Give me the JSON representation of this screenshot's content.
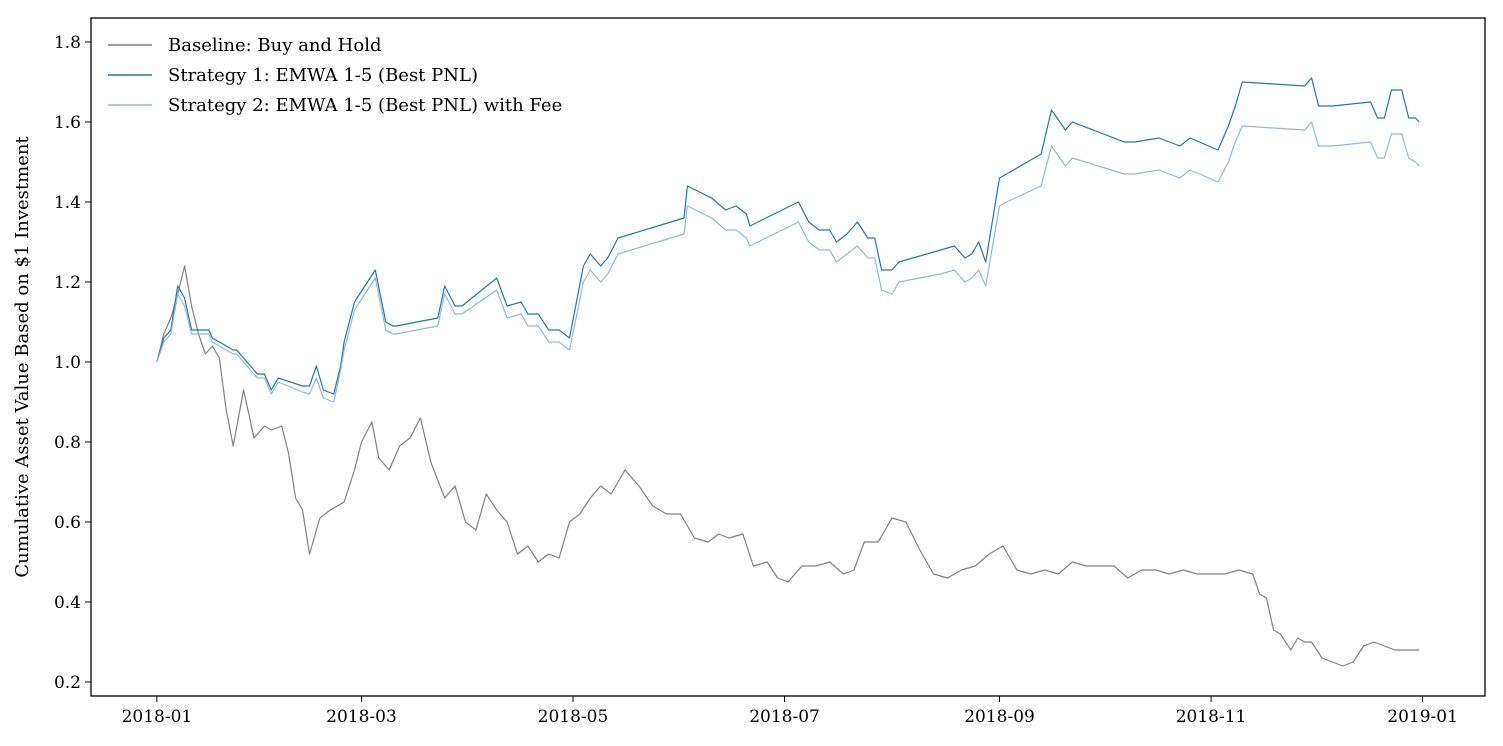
{
  "chart_data": {
    "type": "line",
    "title": "",
    "xlabel": "",
    "ylabel": "Cumulative Asset Value Based on $1 Investment",
    "xlim": [
      "2017-12-13",
      "2019-01-19"
    ],
    "ylim": [
      0.165,
      1.86
    ],
    "x_ticks": [
      "2018-01",
      "2018-03",
      "2018-05",
      "2018-07",
      "2018-09",
      "2018-11",
      "2019-01"
    ],
    "y_ticks": [
      0.2,
      0.4,
      0.6,
      0.8,
      1.0,
      1.2,
      1.4,
      1.6,
      1.8
    ],
    "y_tick_labels": [
      "0.2",
      "0.4",
      "0.6",
      "0.8",
      "1.0",
      "1.2",
      "1.4",
      "1.6",
      "1.8"
    ],
    "grid": false,
    "legend_position": "top-left",
    "series": [
      {
        "name": "Baseline: Buy and Hold",
        "color": "#808080",
        "x": [
          "2018-01-01",
          "2018-01-03",
          "2018-01-05",
          "2018-01-07",
          "2018-01-09",
          "2018-01-11",
          "2018-01-13",
          "2018-01-15",
          "2018-01-17",
          "2018-01-19",
          "2018-01-21",
          "2018-01-23",
          "2018-01-26",
          "2018-01-29",
          "2018-02-01",
          "2018-02-03",
          "2018-02-06",
          "2018-02-08",
          "2018-02-10",
          "2018-02-12",
          "2018-02-14",
          "2018-02-17",
          "2018-02-20",
          "2018-02-24",
          "2018-02-27",
          "2018-03-01",
          "2018-03-04",
          "2018-03-06",
          "2018-03-09",
          "2018-03-12",
          "2018-03-15",
          "2018-03-18",
          "2018-03-21",
          "2018-03-25",
          "2018-03-28",
          "2018-03-31",
          "2018-04-03",
          "2018-04-06",
          "2018-04-09",
          "2018-04-12",
          "2018-04-15",
          "2018-04-18",
          "2018-04-21",
          "2018-04-24",
          "2018-04-27",
          "2018-04-30",
          "2018-05-03",
          "2018-05-06",
          "2018-05-09",
          "2018-05-12",
          "2018-05-16",
          "2018-05-20",
          "2018-05-24",
          "2018-05-28",
          "2018-06-01",
          "2018-06-05",
          "2018-06-09",
          "2018-06-12",
          "2018-06-15",
          "2018-06-19",
          "2018-06-22",
          "2018-06-26",
          "2018-06-29",
          "2018-07-02",
          "2018-07-06",
          "2018-07-10",
          "2018-07-14",
          "2018-07-18",
          "2018-07-21",
          "2018-07-24",
          "2018-07-28",
          "2018-08-01",
          "2018-08-05",
          "2018-08-09",
          "2018-08-13",
          "2018-08-17",
          "2018-08-21",
          "2018-08-25",
          "2018-08-29",
          "2018-09-02",
          "2018-09-06",
          "2018-09-10",
          "2018-09-14",
          "2018-09-18",
          "2018-09-22",
          "2018-09-26",
          "2018-09-30",
          "2018-10-04",
          "2018-10-08",
          "2018-10-12",
          "2018-10-16",
          "2018-10-20",
          "2018-10-24",
          "2018-10-28",
          "2018-11-01",
          "2018-11-05",
          "2018-11-09",
          "2018-11-13",
          "2018-11-15",
          "2018-11-17",
          "2018-11-19",
          "2018-11-21",
          "2018-11-24",
          "2018-11-26",
          "2018-11-28",
          "2018-11-30",
          "2018-12-03",
          "2018-12-06",
          "2018-12-09",
          "2018-12-12",
          "2018-12-15",
          "2018-12-18",
          "2018-12-21",
          "2018-12-24",
          "2018-12-27",
          "2018-12-31"
        ],
        "values": [
          1.0,
          1.07,
          1.11,
          1.17,
          1.24,
          1.14,
          1.07,
          1.02,
          1.04,
          1.01,
          0.88,
          0.79,
          0.93,
          0.81,
          0.84,
          0.83,
          0.84,
          0.77,
          0.66,
          0.63,
          0.52,
          0.61,
          0.63,
          0.65,
          0.73,
          0.8,
          0.85,
          0.76,
          0.73,
          0.79,
          0.81,
          0.86,
          0.75,
          0.66,
          0.69,
          0.6,
          0.58,
          0.67,
          0.63,
          0.6,
          0.52,
          0.54,
          0.5,
          0.52,
          0.51,
          0.6,
          0.62,
          0.66,
          0.69,
          0.67,
          0.73,
          0.69,
          0.64,
          0.62,
          0.62,
          0.56,
          0.55,
          0.57,
          0.56,
          0.57,
          0.49,
          0.5,
          0.46,
          0.45,
          0.49,
          0.49,
          0.5,
          0.47,
          0.48,
          0.55,
          0.55,
          0.61,
          0.6,
          0.53,
          0.47,
          0.46,
          0.48,
          0.49,
          0.52,
          0.54,
          0.48,
          0.47,
          0.48,
          0.47,
          0.5,
          0.49,
          0.49,
          0.49,
          0.46,
          0.48,
          0.48,
          0.47,
          0.48,
          0.47,
          0.47,
          0.47,
          0.48,
          0.47,
          0.42,
          0.41,
          0.33,
          0.32,
          0.28,
          0.31,
          0.3,
          0.3,
          0.26,
          0.25,
          0.24,
          0.25,
          0.29,
          0.3,
          0.29,
          0.28,
          0.28,
          0.28
        ]
      },
      {
        "name": "Strategy 1: EMWA 1-5 (Best PNL)",
        "color": "#1f77b4",
        "x": [
          "2018-01-01",
          "2018-01-03",
          "2018-01-05",
          "2018-01-07",
          "2018-01-09",
          "2018-01-11",
          "2018-01-16",
          "2018-01-17",
          "2018-01-23",
          "2018-01-24",
          "2018-01-30",
          "2018-02-01",
          "2018-02-03",
          "2018-02-05",
          "2018-02-12",
          "2018-02-14",
          "2018-02-16",
          "2018-02-18",
          "2018-02-21",
          "2018-02-23",
          "2018-02-24",
          "2018-02-27",
          "2018-03-05",
          "2018-03-08",
          "2018-03-10",
          "2018-03-11",
          "2018-03-23",
          "2018-03-25",
          "2018-03-28",
          "2018-03-30",
          "2018-04-09",
          "2018-04-12",
          "2018-04-16",
          "2018-04-18",
          "2018-04-21",
          "2018-04-24",
          "2018-04-27",
          "2018-04-30",
          "2018-05-04",
          "2018-05-06",
          "2018-05-09",
          "2018-05-11",
          "2018-05-14",
          "2018-06-02",
          "2018-06-03",
          "2018-06-10",
          "2018-06-14",
          "2018-06-17",
          "2018-06-20",
          "2018-06-21",
          "2018-07-05",
          "2018-07-08",
          "2018-07-11",
          "2018-07-14",
          "2018-07-16",
          "2018-07-19",
          "2018-07-22",
          "2018-07-25",
          "2018-07-27",
          "2018-07-29",
          "2018-08-01",
          "2018-08-03",
          "2018-08-15",
          "2018-08-19",
          "2018-08-22",
          "2018-08-24",
          "2018-08-26",
          "2018-08-28",
          "2018-09-01",
          "2018-09-03",
          "2018-09-13",
          "2018-09-16",
          "2018-09-20",
          "2018-09-22",
          "2018-10-07",
          "2018-10-10",
          "2018-10-17",
          "2018-10-23",
          "2018-10-26",
          "2018-11-03",
          "2018-11-06",
          "2018-11-08",
          "2018-11-10",
          "2018-11-28",
          "2018-11-30",
          "2018-12-02",
          "2018-12-06",
          "2018-12-17",
          "2018-12-19",
          "2018-12-21",
          "2018-12-23",
          "2018-12-26",
          "2018-12-28",
          "2018-12-30",
          "2018-12-31"
        ],
        "values": [
          1.0,
          1.06,
          1.08,
          1.19,
          1.16,
          1.08,
          1.08,
          1.06,
          1.03,
          1.03,
          0.97,
          0.97,
          0.93,
          0.96,
          0.94,
          0.94,
          0.99,
          0.93,
          0.92,
          0.99,
          1.05,
          1.15,
          1.23,
          1.1,
          1.09,
          1.09,
          1.11,
          1.19,
          1.14,
          1.14,
          1.21,
          1.14,
          1.15,
          1.12,
          1.12,
          1.08,
          1.08,
          1.06,
          1.24,
          1.27,
          1.24,
          1.26,
          1.31,
          1.36,
          1.44,
          1.41,
          1.38,
          1.39,
          1.37,
          1.34,
          1.4,
          1.35,
          1.33,
          1.33,
          1.3,
          1.32,
          1.35,
          1.31,
          1.31,
          1.23,
          1.23,
          1.25,
          1.28,
          1.29,
          1.26,
          1.27,
          1.3,
          1.25,
          1.46,
          1.47,
          1.52,
          1.63,
          1.58,
          1.6,
          1.55,
          1.55,
          1.56,
          1.54,
          1.56,
          1.53,
          1.59,
          1.64,
          1.7,
          1.69,
          1.71,
          1.64,
          1.64,
          1.65,
          1.61,
          1.61,
          1.68,
          1.68,
          1.61,
          1.61,
          1.6
        ]
      },
      {
        "name": "Strategy 2: EMWA 1-5 (Best PNL) with Fee",
        "color": "#8ebad9",
        "x": [
          "2018-01-01",
          "2018-01-03",
          "2018-01-05",
          "2018-01-07",
          "2018-01-09",
          "2018-01-11",
          "2018-01-16",
          "2018-01-17",
          "2018-01-23",
          "2018-01-24",
          "2018-01-30",
          "2018-02-01",
          "2018-02-03",
          "2018-02-05",
          "2018-02-12",
          "2018-02-14",
          "2018-02-16",
          "2018-02-18",
          "2018-02-21",
          "2018-02-23",
          "2018-02-24",
          "2018-02-27",
          "2018-03-05",
          "2018-03-08",
          "2018-03-10",
          "2018-03-11",
          "2018-03-23",
          "2018-03-25",
          "2018-03-28",
          "2018-03-30",
          "2018-04-09",
          "2018-04-12",
          "2018-04-16",
          "2018-04-18",
          "2018-04-21",
          "2018-04-24",
          "2018-04-27",
          "2018-04-30",
          "2018-05-04",
          "2018-05-06",
          "2018-05-09",
          "2018-05-11",
          "2018-05-14",
          "2018-06-02",
          "2018-06-03",
          "2018-06-10",
          "2018-06-14",
          "2018-06-17",
          "2018-06-20",
          "2018-06-21",
          "2018-07-05",
          "2018-07-08",
          "2018-07-11",
          "2018-07-14",
          "2018-07-16",
          "2018-07-19",
          "2018-07-22",
          "2018-07-25",
          "2018-07-27",
          "2018-07-29",
          "2018-08-01",
          "2018-08-03",
          "2018-08-15",
          "2018-08-19",
          "2018-08-22",
          "2018-08-24",
          "2018-08-26",
          "2018-08-28",
          "2018-09-01",
          "2018-09-03",
          "2018-09-13",
          "2018-09-16",
          "2018-09-20",
          "2018-09-22",
          "2018-10-07",
          "2018-10-10",
          "2018-10-17",
          "2018-10-23",
          "2018-10-26",
          "2018-11-03",
          "2018-11-06",
          "2018-11-08",
          "2018-11-10",
          "2018-11-28",
          "2018-11-30",
          "2018-12-02",
          "2018-12-06",
          "2018-12-17",
          "2018-12-19",
          "2018-12-21",
          "2018-12-23",
          "2018-12-26",
          "2018-12-28",
          "2018-12-30",
          "2018-12-31"
        ],
        "values": [
          1.0,
          1.05,
          1.07,
          1.17,
          1.14,
          1.07,
          1.07,
          1.05,
          1.02,
          1.02,
          0.96,
          0.96,
          0.92,
          0.95,
          0.925,
          0.92,
          0.96,
          0.91,
          0.9,
          0.98,
          1.03,
          1.13,
          1.21,
          1.08,
          1.07,
          1.07,
          1.09,
          1.17,
          1.12,
          1.12,
          1.18,
          1.11,
          1.12,
          1.09,
          1.09,
          1.05,
          1.05,
          1.03,
          1.2,
          1.23,
          1.2,
          1.22,
          1.27,
          1.32,
          1.39,
          1.36,
          1.33,
          1.33,
          1.31,
          1.29,
          1.35,
          1.3,
          1.28,
          1.28,
          1.25,
          1.27,
          1.29,
          1.26,
          1.26,
          1.18,
          1.17,
          1.2,
          1.22,
          1.23,
          1.2,
          1.21,
          1.23,
          1.19,
          1.39,
          1.4,
          1.44,
          1.54,
          1.49,
          1.51,
          1.47,
          1.47,
          1.48,
          1.46,
          1.48,
          1.45,
          1.5,
          1.55,
          1.59,
          1.58,
          1.6,
          1.54,
          1.54,
          1.55,
          1.51,
          1.51,
          1.57,
          1.57,
          1.51,
          1.5,
          1.49
        ]
      }
    ]
  }
}
